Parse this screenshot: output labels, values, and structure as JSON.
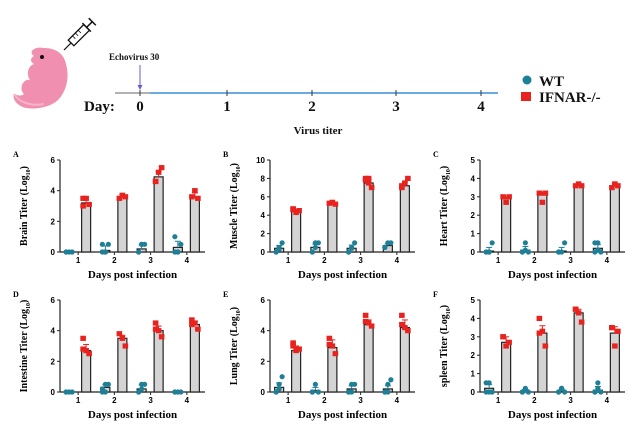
{
  "header": {
    "virus_label": "Echovirus 30",
    "day_label": "Day:",
    "days": [
      "0",
      "1",
      "2",
      "3",
      "4"
    ],
    "section_title": "Virus titer",
    "legend": [
      {
        "label": "WT",
        "marker": "circle",
        "color": "#1f7f96"
      },
      {
        "label": "IFNAR-/-",
        "marker": "square",
        "color": "#e8231f"
      }
    ],
    "icons": [
      "mouse-pup-icon",
      "syringe-icon"
    ]
  },
  "colors": {
    "wt": "#1f7f96",
    "ifnar": "#e8231f",
    "bar_fill": "#d4d4d4",
    "axis": "#222222",
    "timeline": "#3a8fd6",
    "timeline_start": "#999999",
    "arrow": "#6a5acd"
  },
  "chart_data": [
    {
      "type": "bar",
      "panel": "A",
      "title": "",
      "xlabel": "Days post infection",
      "ylabel": "Brain Titer (Log10)",
      "categories": [
        "1",
        "2",
        "3",
        "4"
      ],
      "ylim": [
        0,
        6
      ],
      "yticks": [
        0,
        2,
        4,
        6
      ],
      "series": [
        {
          "name": "WT",
          "means": [
            0,
            0.1,
            0.2,
            0.3
          ],
          "errors": [
            0,
            0.3,
            0.25,
            0.4
          ],
          "points": [
            [
              0,
              0,
              0,
              0
            ],
            [
              0,
              0,
              0.5,
              0.5,
              0
            ],
            [
              0,
              0.5,
              0.5,
              0,
              0.5
            ],
            [
              0,
              0,
              0.5,
              1,
              0
            ]
          ]
        },
        {
          "name": "IFNAR-/-",
          "means": [
            3.2,
            3.6,
            4.9,
            3.6
          ],
          "errors": [
            0.2,
            0.15,
            0.35,
            0.25
          ],
          "points": [
            [
              3.0,
              3.5,
              3.1,
              3.5
            ],
            [
              3.5,
              3.7,
              3.6
            ],
            [
              4.6,
              5.2,
              5.5,
              4.6
            ],
            [
              3.6,
              4.0,
              3.5
            ]
          ]
        }
      ]
    },
    {
      "type": "bar",
      "panel": "B",
      "title": "",
      "xlabel": "Days post infection",
      "ylabel": "Muscle Titer (Log10)",
      "categories": [
        "1",
        "2",
        "3",
        "4"
      ],
      "ylim": [
        0,
        10
      ],
      "yticks": [
        0,
        2,
        4,
        6,
        8,
        10
      ],
      "series": [
        {
          "name": "WT",
          "means": [
            0.4,
            0.5,
            0.4,
            0.7
          ],
          "errors": [
            0.3,
            0.35,
            0.35,
            0.2
          ],
          "points": [
            [
              0,
              0.5,
              1,
              0,
              0.3
            ],
            [
              0,
              0.5,
              1,
              0,
              1
            ],
            [
              0,
              0.5,
              1,
              0,
              0.4
            ],
            [
              0.5,
              1,
              1,
              0.5
            ]
          ]
        },
        {
          "name": "IFNAR-/-",
          "means": [
            4.4,
            5.3,
            7.5,
            7.2
          ],
          "errors": [
            0.2,
            0.1,
            0.4,
            0.4
          ],
          "points": [
            [
              4.6,
              4.3,
              4.5,
              4.7
            ],
            [
              5.3,
              5.4,
              5.2
            ],
            [
              8,
              7.5,
              7.0,
              7.8,
              8
            ],
            [
              7.0,
              7.5,
              8,
              7.2
            ]
          ]
        }
      ]
    },
    {
      "type": "bar",
      "panel": "C",
      "title": "",
      "xlabel": "Days post infection",
      "ylabel": "Heart Titer (Log10)",
      "categories": [
        "1",
        "2",
        "3",
        "4"
      ],
      "ylim": [
        0,
        5
      ],
      "yticks": [
        0,
        1,
        2,
        3,
        4,
        5
      ],
      "series": [
        {
          "name": "WT",
          "means": [
            0.05,
            0.1,
            0.05,
            0.2
          ],
          "errors": [
            0.2,
            0.2,
            0.2,
            0.2
          ],
          "points": [
            [
              0,
              0,
              0.5,
              0,
              0
            ],
            [
              0,
              0.5,
              0,
              0,
              0.1
            ],
            [
              0,
              0,
              0.5,
              0
            ],
            [
              0.5,
              0.5,
              0,
              0,
              0.1
            ]
          ]
        },
        {
          "name": "IFNAR-/-",
          "means": [
            2.9,
            3.1,
            3.6,
            3.6
          ],
          "errors": [
            0.1,
            0.15,
            0.05,
            0.1
          ],
          "points": [
            [
              3.0,
              2.7,
              3.0
            ],
            [
              3.2,
              2.7,
              3.2
            ],
            [
              3.6,
              3.7,
              3.6
            ],
            [
              3.5,
              3.7,
              3.6
            ]
          ]
        }
      ]
    },
    {
      "type": "bar",
      "panel": "D",
      "title": "",
      "xlabel": "Days post infection",
      "ylabel": "Intestine Titer (Log10)",
      "categories": [
        "1",
        "2",
        "3",
        "4"
      ],
      "ylim": [
        0,
        6
      ],
      "yticks": [
        0,
        2,
        4,
        6
      ],
      "series": [
        {
          "name": "WT",
          "means": [
            0,
            0.3,
            0.2,
            0
          ],
          "errors": [
            0,
            0.2,
            0.25,
            0
          ],
          "points": [
            [
              0,
              0,
              0,
              0
            ],
            [
              0,
              0.5,
              0.5,
              0.2,
              0
            ],
            [
              0,
              0.5,
              0.5,
              0,
              0.2
            ],
            [
              0,
              0,
              0,
              0
            ]
          ]
        },
        {
          "name": "IFNAR-/-",
          "means": [
            2.7,
            3.5,
            4.0,
            4.4
          ],
          "errors": [
            0.4,
            0.2,
            0.3,
            0.2
          ],
          "points": [
            [
              3.5,
              2.7,
              2.5,
              2.8
            ],
            [
              3.8,
              3.5,
              3.0
            ],
            [
              4.5,
              4.0,
              3.6,
              4.1
            ],
            [
              4.7,
              4.5,
              4.1,
              4.4
            ]
          ]
        }
      ]
    },
    {
      "type": "bar",
      "panel": "E",
      "title": "",
      "xlabel": "Days post infection",
      "ylabel": "Lung Titer (Log10)",
      "categories": [
        "1",
        "2",
        "3",
        "4"
      ],
      "ylim": [
        0,
        6
      ],
      "yticks": [
        0,
        2,
        4,
        6
      ],
      "series": [
        {
          "name": "WT",
          "means": [
            0.3,
            0.1,
            0.2,
            0.2
          ],
          "errors": [
            0.3,
            0.2,
            0.2,
            0.2
          ],
          "points": [
            [
              0,
              0.5,
              1,
              0,
              0.2
            ],
            [
              0,
              0.5,
              0,
              0
            ],
            [
              0,
              0.5,
              0.5,
              0,
              0
            ],
            [
              0,
              0.5,
              0.8,
              0,
              0
            ]
          ]
        },
        {
          "name": "IFNAR-/-",
          "means": [
            2.7,
            2.9,
            4.4,
            4.2
          ],
          "errors": [
            0.3,
            0.5,
            0.3,
            0.5
          ],
          "points": [
            [
              3.2,
              2.7,
              2.8,
              3.0
            ],
            [
              3.5,
              3.0,
              2.5,
              3.1
            ],
            [
              5.0,
              4.5,
              4.3,
              4.6
            ],
            [
              5.0,
              4.2,
              4.0,
              4.4
            ]
          ]
        }
      ]
    },
    {
      "type": "bar",
      "panel": "F",
      "title": "",
      "xlabel": "Days post infection",
      "ylabel": "spleen Titer (Log10)",
      "categories": [
        "1",
        "2",
        "3",
        "4"
      ],
      "ylim": [
        0,
        5
      ],
      "yticks": [
        0,
        1,
        2,
        3,
        4,
        5
      ],
      "series": [
        {
          "name": "WT",
          "means": [
            0.2,
            0.05,
            0.05,
            0.1
          ],
          "errors": [
            0.2,
            0.1,
            0.1,
            0.2
          ],
          "points": [
            [
              0,
              0.5,
              0,
              0.5,
              0
            ],
            [
              0,
              0.2,
              0,
              0,
              0.1
            ],
            [
              0,
              0.2,
              0,
              0,
              0.2
            ],
            [
              0,
              0.5,
              0,
              0,
              0.2
            ]
          ]
        },
        {
          "name": "IFNAR-/-",
          "means": [
            2.7,
            3.2,
            4.3,
            3.2
          ],
          "errors": [
            0.3,
            0.4,
            0.2,
            0.35
          ],
          "points": [
            [
              3.0,
              2.5,
              2.7,
              3.0
            ],
            [
              4.0,
              3.3,
              2.5,
              3.2
            ],
            [
              4.5,
              4.3,
              3.8,
              4.5
            ],
            [
              3.5,
              2.5,
              3.3,
              3.5
            ]
          ]
        }
      ]
    }
  ]
}
